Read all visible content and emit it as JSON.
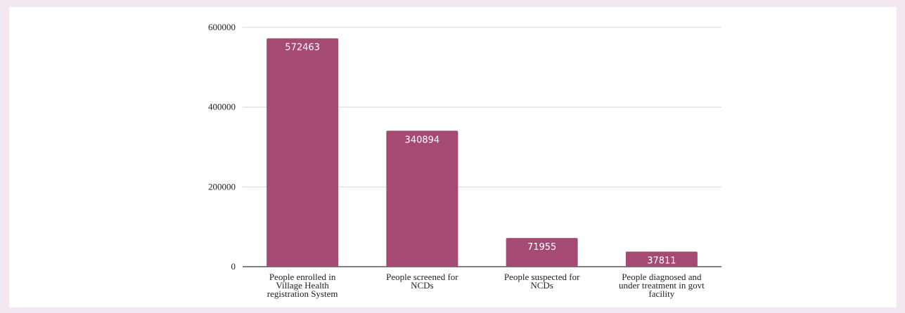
{
  "chart_data": {
    "type": "bar",
    "categories": [
      [
        "People enrolled in",
        "Village Health",
        "registration System"
      ],
      [
        "People screened for",
        "NCDs"
      ],
      [
        "People suspected for",
        "NCDs"
      ],
      [
        "People diagnosed and",
        "under treatment in govt",
        "facility"
      ]
    ],
    "values": [
      572463,
      340894,
      71955,
      37811
    ],
    "value_labels": [
      "572463",
      "340894",
      "71955",
      "37811"
    ],
    "yticks": [
      "0",
      "200000",
      "400000",
      "600000"
    ],
    "ylim": [
      0,
      600000
    ],
    "grid": true,
    "colors": {
      "bar": "#a44a73",
      "grid": "#d9d9d9",
      "axis": "#333333"
    }
  }
}
